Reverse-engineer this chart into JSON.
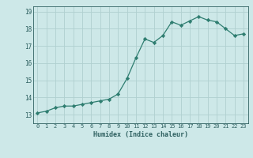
{
  "x": [
    0,
    1,
    2,
    3,
    4,
    5,
    6,
    7,
    8,
    9,
    10,
    11,
    12,
    13,
    14,
    15,
    16,
    17,
    18,
    19,
    20,
    21,
    22,
    23
  ],
  "y": [
    13.1,
    13.2,
    13.4,
    13.5,
    13.5,
    13.6,
    13.7,
    13.8,
    13.9,
    14.2,
    15.1,
    16.3,
    17.4,
    17.2,
    17.6,
    18.4,
    18.2,
    18.45,
    18.7,
    18.5,
    18.4,
    18.0,
    17.6,
    17.7
  ],
  "xlabel": "Humidex (Indice chaleur)",
  "ylim": [
    12.5,
    19.3
  ],
  "xlim": [
    -0.5,
    23.5
  ],
  "yticks": [
    13,
    14,
    15,
    16,
    17,
    18,
    19
  ],
  "xticks": [
    0,
    1,
    2,
    3,
    4,
    5,
    6,
    7,
    8,
    9,
    10,
    11,
    12,
    13,
    14,
    15,
    16,
    17,
    18,
    19,
    20,
    21,
    22,
    23
  ],
  "bg_color": "#cde8e8",
  "grid_color": "#b0d0d0",
  "line_color": "#2e7d70",
  "marker_color": "#2e7d70",
  "tick_color": "#2e6060",
  "xlabel_color": "#2e6060"
}
